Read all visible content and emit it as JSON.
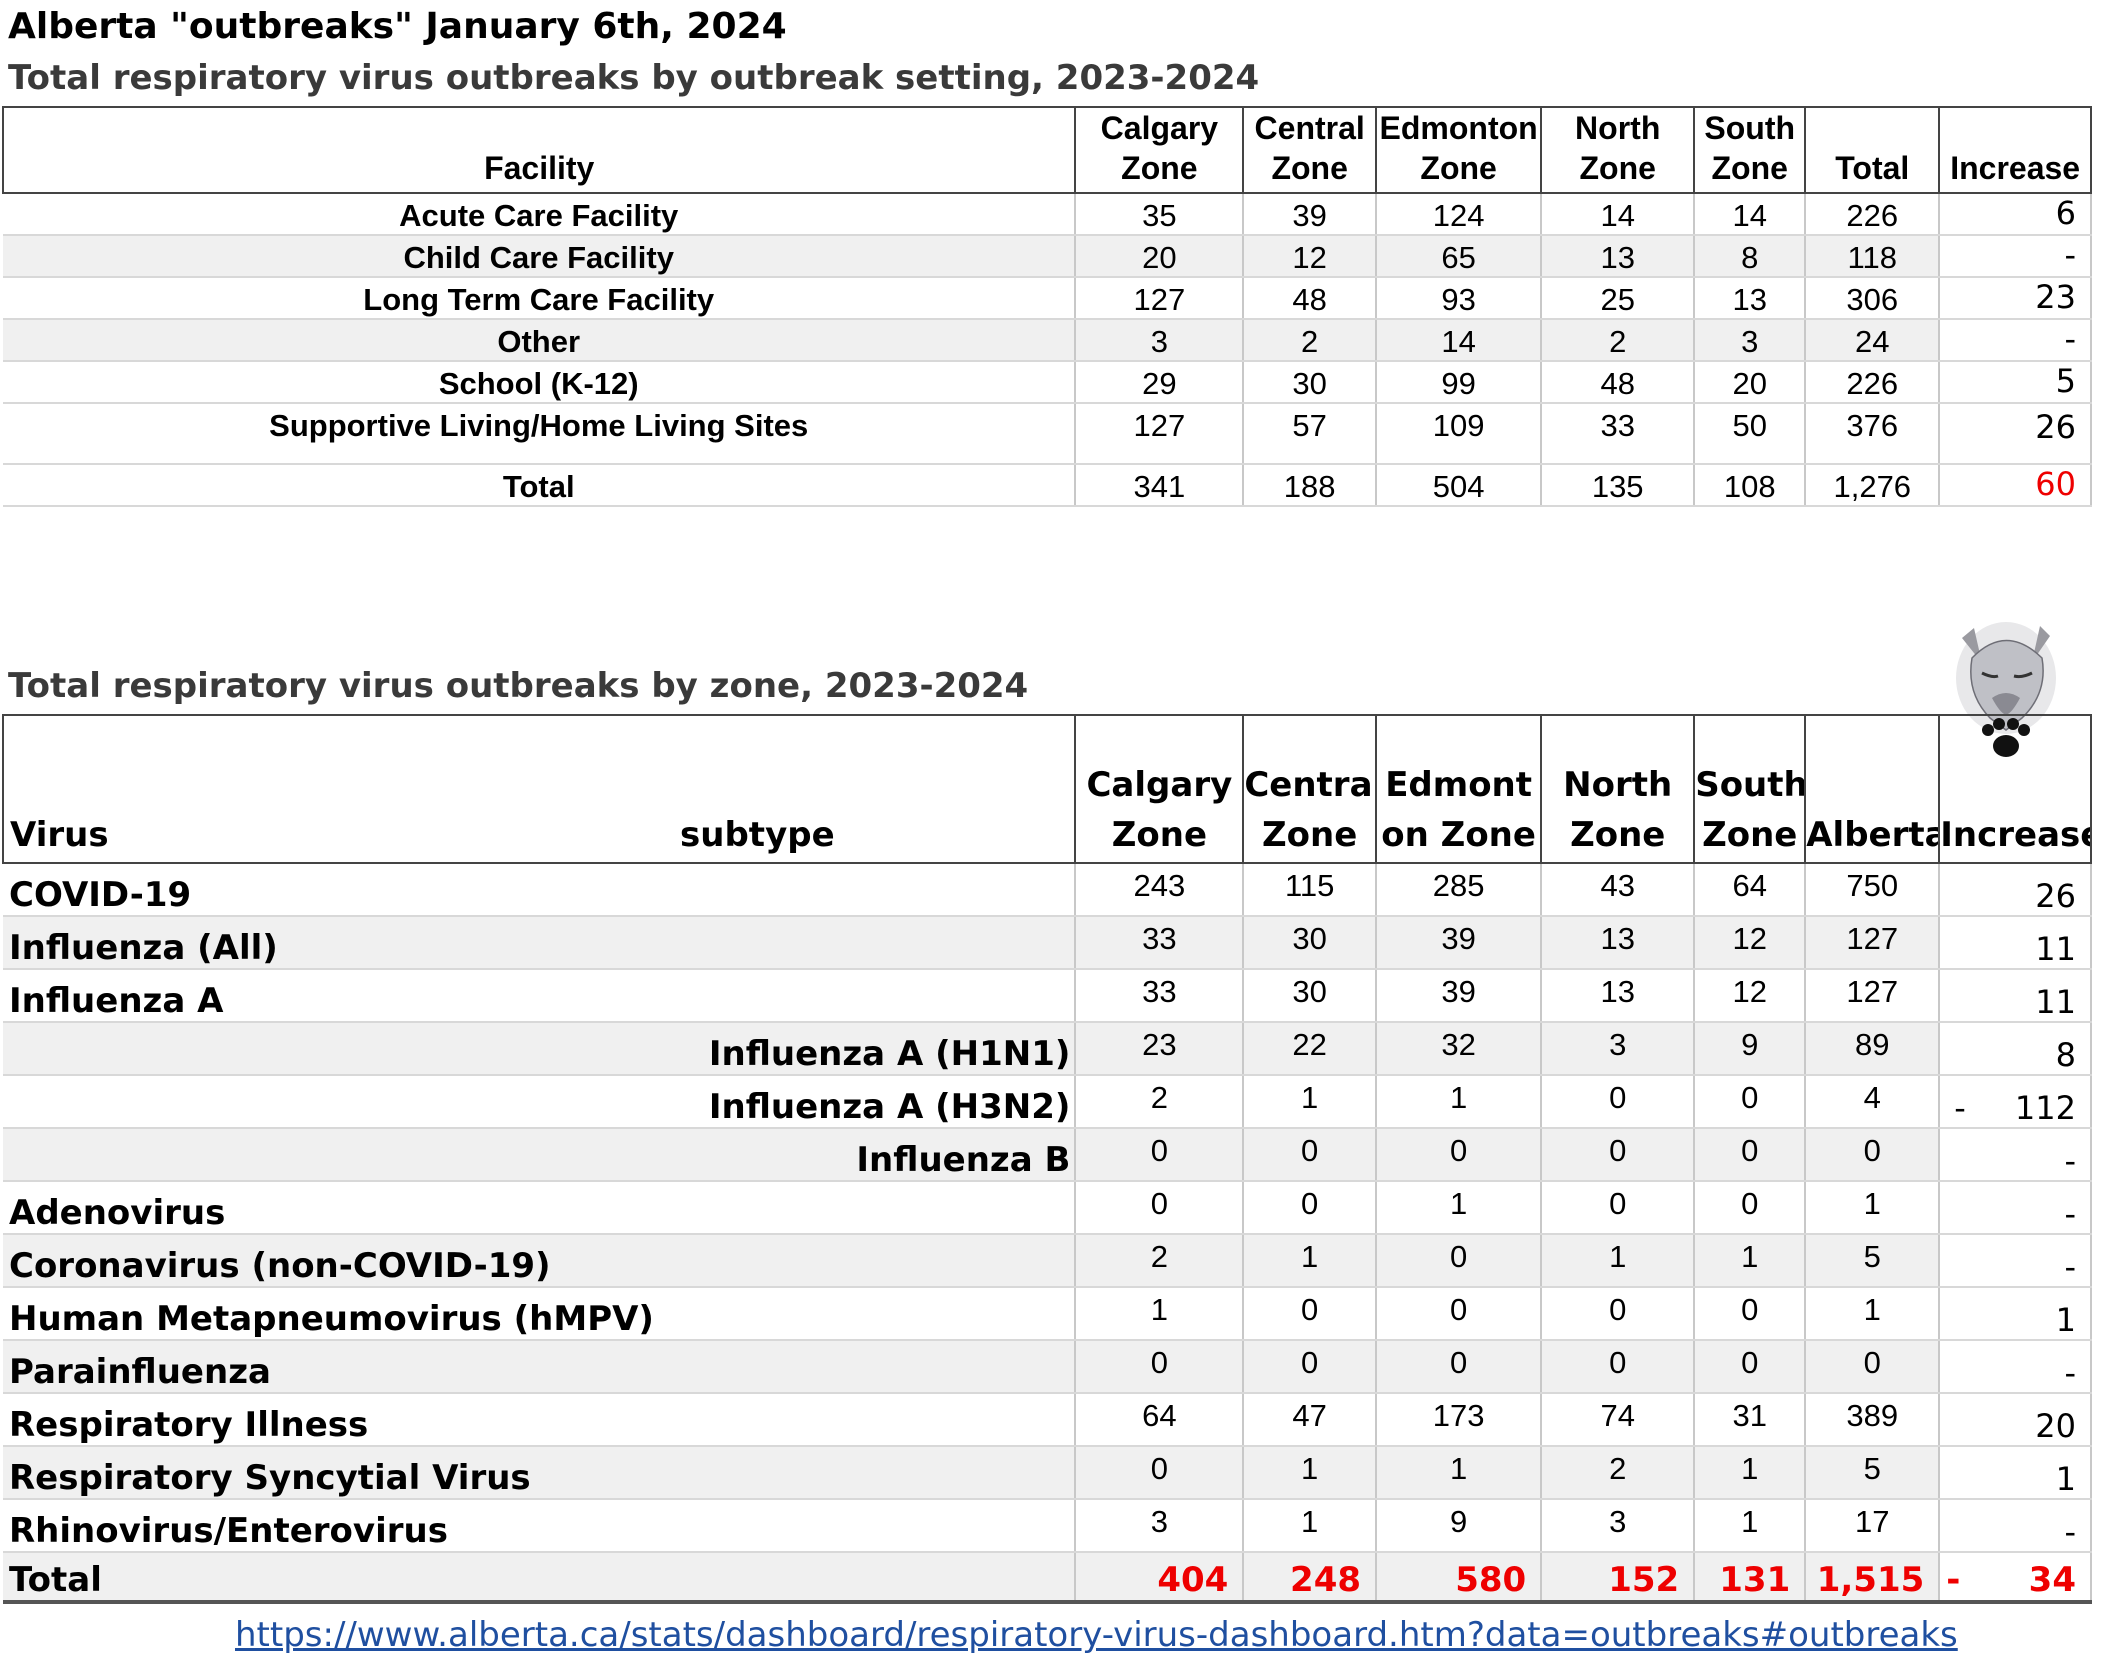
{
  "title": "Alberta \"outbreaks\" January 6th, 2024",
  "table1": {
    "subtitle": "Total respiratory virus outbreaks by outbreak setting, 2023-2024",
    "headers": [
      "Facility",
      "Calgary Zone",
      "Central Zone",
      "Edmonton Zone",
      "North Zone",
      "South Zone",
      "Total",
      "Increase"
    ],
    "rows": [
      {
        "facility": "Acute Care Facility",
        "calgary": "35",
        "central": "39",
        "edmonton": "124",
        "north": "14",
        "south": "14",
        "total": "226",
        "increase": "6"
      },
      {
        "facility": "Child Care Facility",
        "calgary": "20",
        "central": "12",
        "edmonton": "65",
        "north": "13",
        "south": "8",
        "total": "118",
        "increase": "-"
      },
      {
        "facility": "Long Term Care Facility",
        "calgary": "127",
        "central": "48",
        "edmonton": "93",
        "north": "25",
        "south": "13",
        "total": "306",
        "increase": "23"
      },
      {
        "facility": "Other",
        "calgary": "3",
        "central": "2",
        "edmonton": "14",
        "north": "2",
        "south": "3",
        "total": "24",
        "increase": "-"
      },
      {
        "facility": "School (K-12)",
        "calgary": "29",
        "central": "30",
        "edmonton": "99",
        "north": "48",
        "south": "20",
        "total": "226",
        "increase": "5"
      },
      {
        "facility": "Supportive Living/Home Living Sites",
        "calgary": "127",
        "central": "57",
        "edmonton": "109",
        "north": "33",
        "south": "50",
        "total": "376",
        "increase": "26"
      }
    ],
    "total": {
      "label": "Total",
      "calgary": "341",
      "central": "188",
      "edmonton": "504",
      "north": "135",
      "south": "108",
      "total": "1,276",
      "increase": "60"
    }
  },
  "table2": {
    "subtitle": "Total respiratory virus outbreaks by zone, 2023-2024",
    "headers": [
      "Virus",
      "subtype",
      "Calgary Zone",
      "Central Zone",
      "Edmonton Zone",
      "North Zone",
      "South Zone",
      "Alberta",
      "Increase"
    ],
    "rows": [
      {
        "virus": "COVID-19",
        "calgary": "243",
        "central": "115",
        "edmonton": "285",
        "north": "43",
        "south": "64",
        "alberta": "750",
        "increase": "26"
      },
      {
        "virus": "Influenza (All)",
        "calgary": "33",
        "central": "30",
        "edmonton": "39",
        "north": "13",
        "south": "12",
        "alberta": "127",
        "increase": "11"
      },
      {
        "virus": "Influenza A",
        "calgary": "33",
        "central": "30",
        "edmonton": "39",
        "north": "13",
        "south": "12",
        "alberta": "127",
        "increase": "11"
      },
      {
        "virus": "Influenza A (H1N1)",
        "calgary": "23",
        "central": "22",
        "edmonton": "32",
        "north": "3",
        "south": "9",
        "alberta": "89",
        "increase": "8"
      },
      {
        "virus": "Influenza A (H3N2)",
        "calgary": "2",
        "central": "1",
        "edmonton": "1",
        "north": "0",
        "south": "0",
        "alberta": "4",
        "increase_sign": "-",
        "increase": "112"
      },
      {
        "virus": "Influenza B",
        "calgary": "0",
        "central": "0",
        "edmonton": "0",
        "north": "0",
        "south": "0",
        "alberta": "0",
        "increase": "-"
      },
      {
        "virus": "Adenovirus",
        "calgary": "0",
        "central": "0",
        "edmonton": "1",
        "north": "0",
        "south": "0",
        "alberta": "1",
        "increase": "-"
      },
      {
        "virus": "Coronavirus (non-COVID-19)",
        "calgary": "2",
        "central": "1",
        "edmonton": "0",
        "north": "1",
        "south": "1",
        "alberta": "5",
        "increase": "-"
      },
      {
        "virus": "Human Metapneumovirus (hMPV)",
        "calgary": "1",
        "central": "0",
        "edmonton": "0",
        "north": "0",
        "south": "0",
        "alberta": "1",
        "increase": "1"
      },
      {
        "virus": "Parainfluenza",
        "calgary": "0",
        "central": "0",
        "edmonton": "0",
        "north": "0",
        "south": "0",
        "alberta": "0",
        "increase": "-"
      },
      {
        "virus": "Respiratory Illness",
        "calgary": "64",
        "central": "47",
        "edmonton": "173",
        "north": "74",
        "south": "31",
        "alberta": "389",
        "increase": "20"
      },
      {
        "virus": "Respiratory Syncytial Virus",
        "calgary": "0",
        "central": "1",
        "edmonton": "1",
        "north": "2",
        "south": "1",
        "alberta": "5",
        "increase": "1"
      },
      {
        "virus": "Rhinovirus/Enterovirus",
        "calgary": "3",
        "central": "1",
        "edmonton": "9",
        "north": "3",
        "south": "1",
        "alberta": "17",
        "increase": "-"
      }
    ],
    "total": {
      "label": "Total",
      "calgary": "404",
      "central": "248",
      "edmonton": "580",
      "north": "152",
      "south": "131",
      "alberta": "1,515",
      "increase_sign": "-",
      "increase": "34"
    }
  },
  "source_link": "https://www.alberta.ca/stats/dashboard/respiratory-virus-dashboard.htm?data=outbreaks#outbreaks",
  "logo_icon": "wolf-paw-logo",
  "colors": {
    "highlight_red": "#ee0000",
    "link_blue": "#1f4fa0",
    "row_alt": "#f0f0f0"
  }
}
